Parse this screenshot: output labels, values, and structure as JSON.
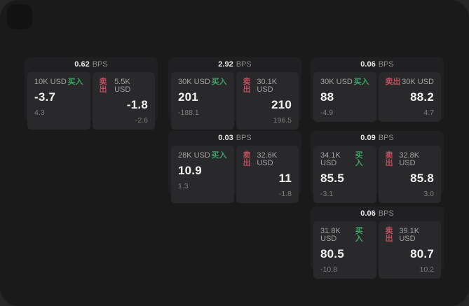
{
  "colors": {
    "surface": "#1a1a1b",
    "card": "#202022",
    "panel": "#29292b",
    "buy_green": "#3da065",
    "sell_red": "#c04f60"
  },
  "app": {
    "icon": "app-logo-icon"
  },
  "spread_unit_label": "BPS",
  "cards": [
    {
      "row": 1,
      "col": 1,
      "spread_value": "0.62",
      "spread_unit": "BPS",
      "buy": {
        "size": "10K USD",
        "side_label": "买入",
        "price": "-3.7",
        "sub": "4.3"
      },
      "sell": {
        "size": "5.5K USD",
        "side_label": "卖出",
        "price": "-1.8",
        "sub": "-2.6"
      }
    },
    {
      "row": 1,
      "col": 2,
      "spread_value": "2.92",
      "spread_unit": "BPS",
      "buy": {
        "size": "30K USD",
        "side_label": "买入",
        "price": "201",
        "sub": "-188.1"
      },
      "sell": {
        "size": "30.1K USD",
        "side_label": "卖出",
        "price": "210",
        "sub": "196.5"
      }
    },
    {
      "row": 1,
      "col": 3,
      "spread_value": "0.06",
      "spread_unit": "BPS",
      "buy": {
        "size": "30K USD",
        "side_label": "买入",
        "price": "88",
        "sub": "-4.9"
      },
      "sell": {
        "size": "30K USD",
        "side_label": "卖出",
        "price": "88.2",
        "sub": "4.7"
      }
    },
    {
      "row": 2,
      "col": 2,
      "spread_value": "0.03",
      "spread_unit": "BPS",
      "buy": {
        "size": "28K USD",
        "side_label": "买入",
        "price": "10.9",
        "sub": "1.3"
      },
      "sell": {
        "size": "32.6K USD",
        "side_label": "卖出",
        "price": "11",
        "sub": "-1.8"
      }
    },
    {
      "row": 2,
      "col": 3,
      "spread_value": "0.09",
      "spread_unit": "BPS",
      "buy": {
        "size": "34.1K USD",
        "side_label": "买入",
        "price": "85.5",
        "sub": "-3.1"
      },
      "sell": {
        "size": "32.8K USD",
        "side_label": "卖出",
        "price": "85.8",
        "sub": "3.0"
      }
    },
    {
      "row": 3,
      "col": 3,
      "spread_value": "0.06",
      "spread_unit": "BPS",
      "buy": {
        "size": "31.8K USD",
        "side_label": "买入",
        "price": "80.5",
        "sub": "-10.8"
      },
      "sell": {
        "size": "39.1K USD",
        "side_label": "卖出",
        "price": "80.7",
        "sub": "10.2"
      }
    }
  ]
}
